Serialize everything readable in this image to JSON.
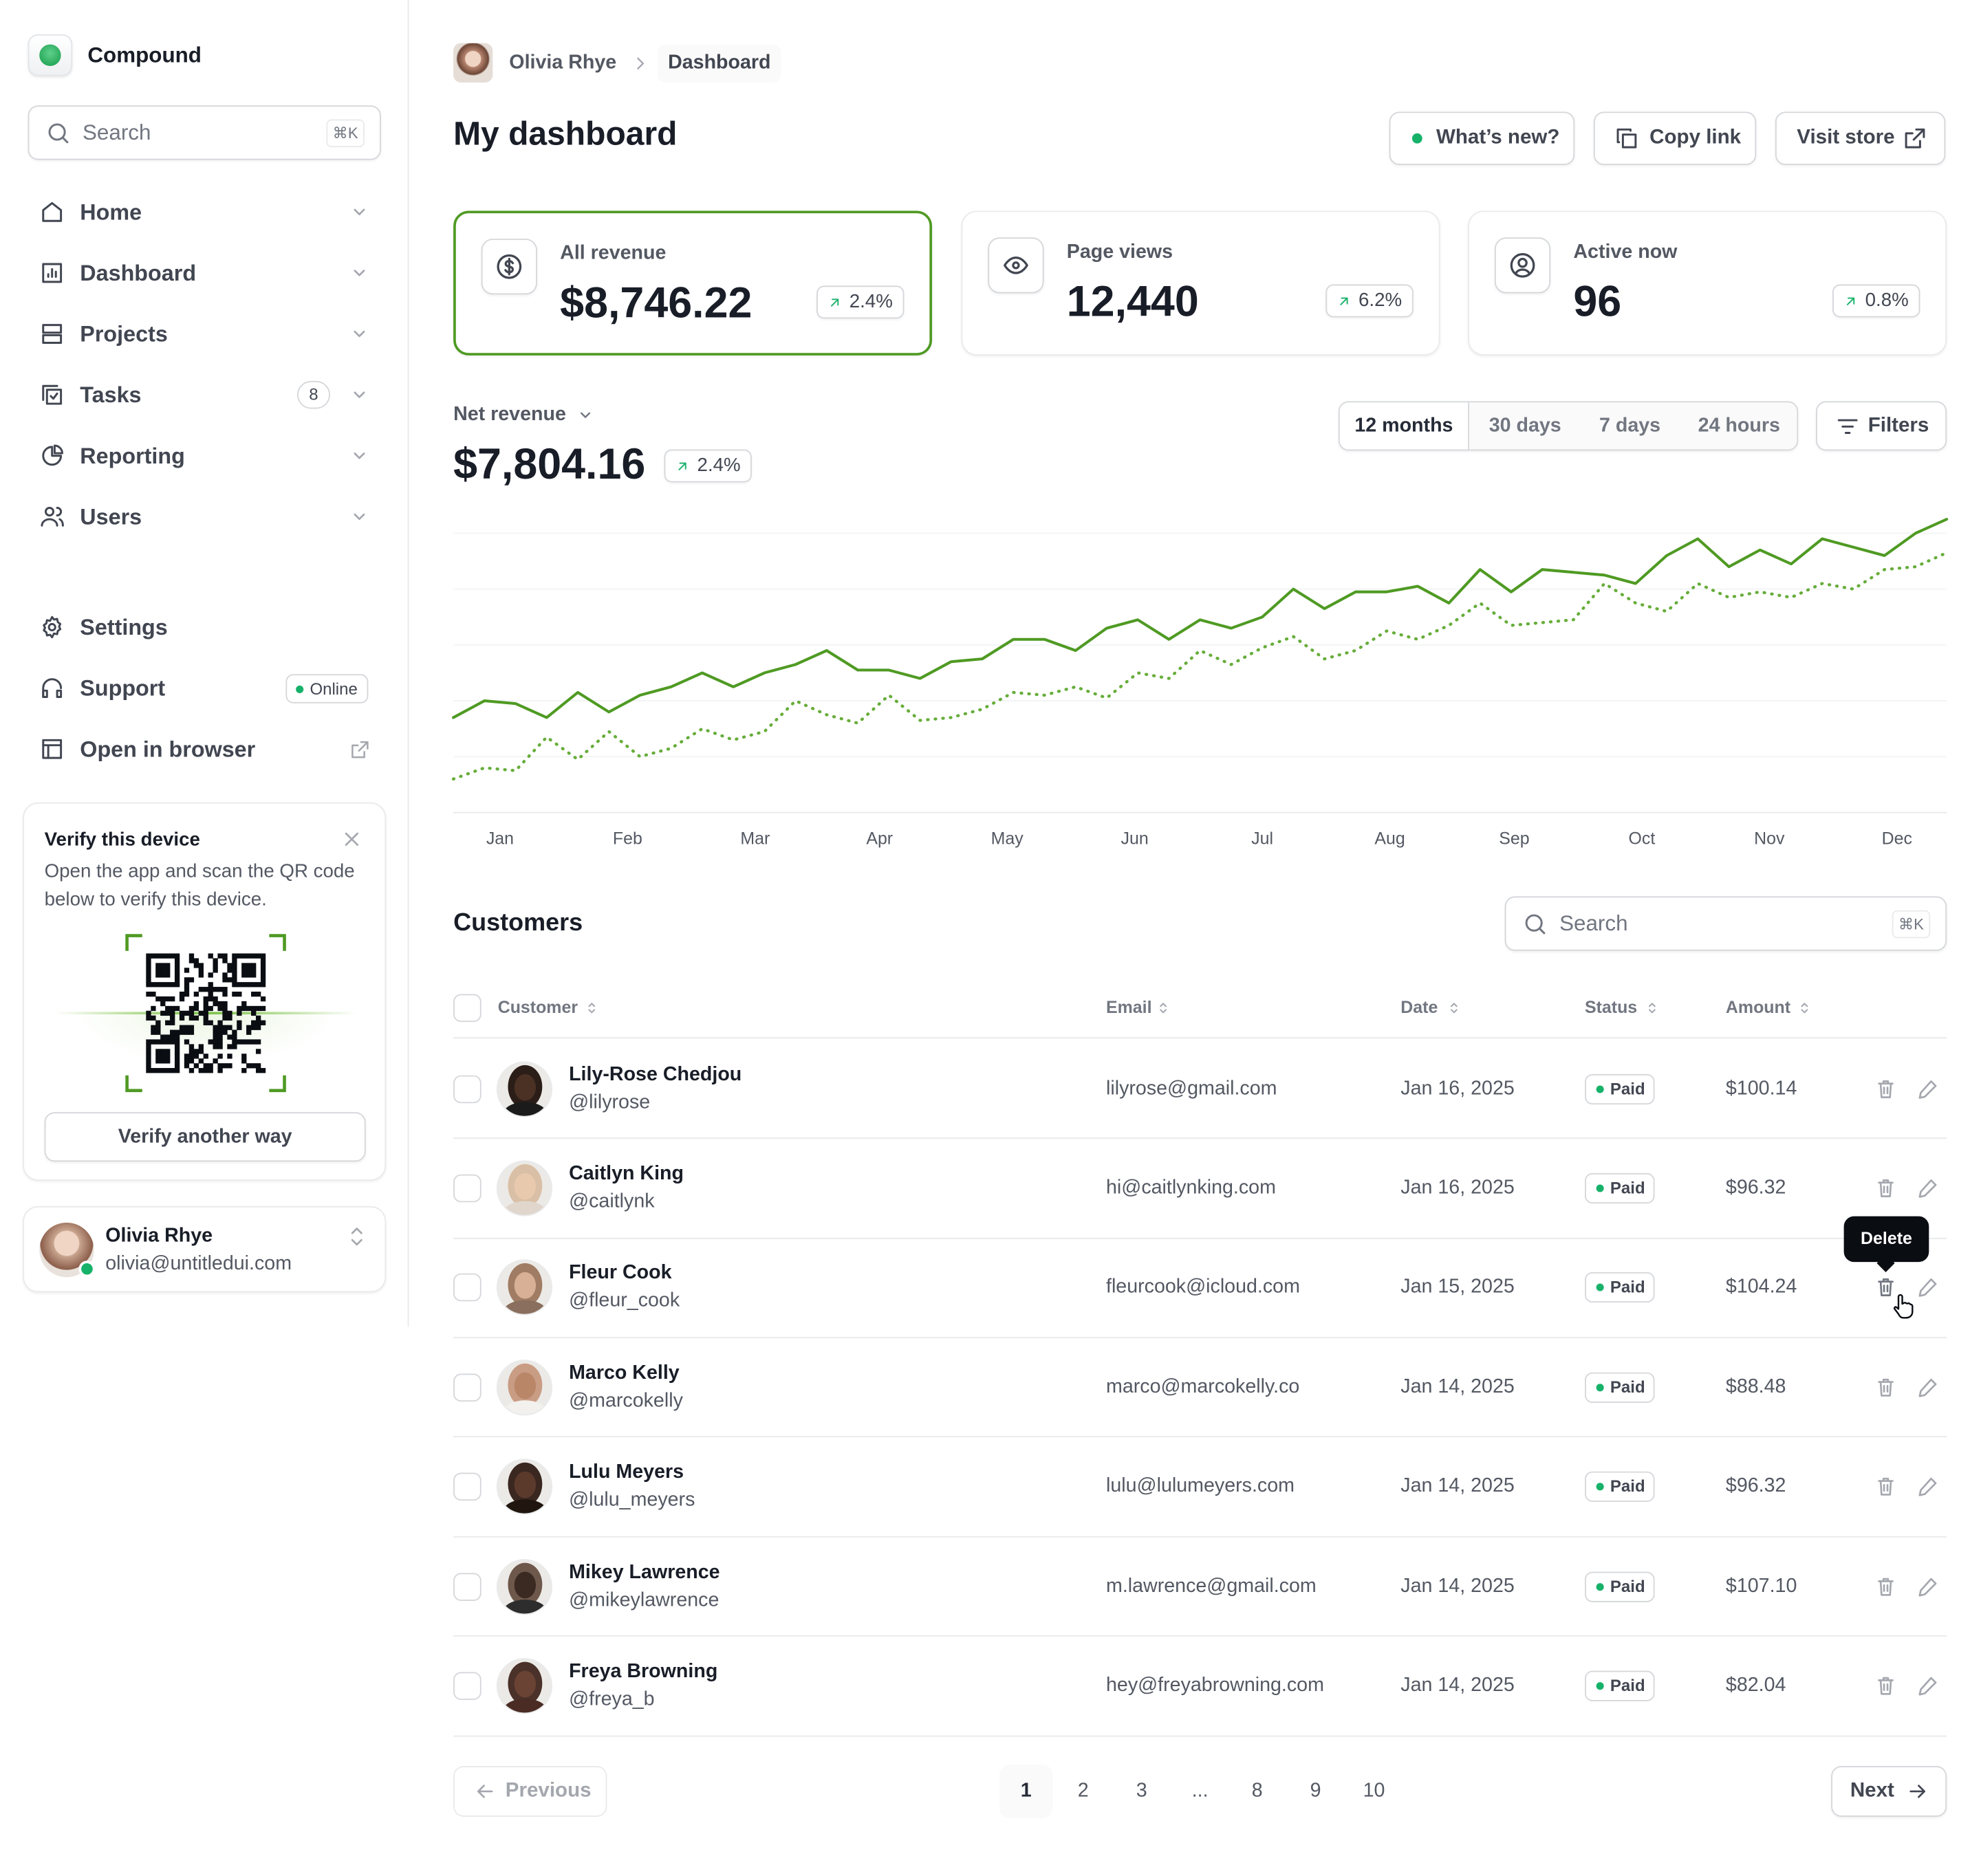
{
  "sidebar": {
    "brand": "Compound",
    "search": "Search",
    "shortcut": "⌘K",
    "nav": [
      {
        "label": "Home"
      },
      {
        "label": "Dashboard"
      },
      {
        "label": "Projects"
      },
      {
        "label": "Tasks",
        "badge": "8"
      },
      {
        "label": "Reporting"
      },
      {
        "label": "Users"
      }
    ],
    "footer_nav": [
      {
        "label": "Settings"
      },
      {
        "label": "Support",
        "badge": "Online"
      },
      {
        "label": "Open in browser"
      }
    ],
    "verify": {
      "title": "Verify this device",
      "text": "Open the app and scan the QR code below to verify this device.",
      "button": "Verify another way"
    },
    "user": {
      "name": "Olivia Rhye",
      "email": "olivia@untitledui.com"
    }
  },
  "header": {
    "breadcrumb": [
      "Olivia Rhye",
      "Dashboard"
    ],
    "title": "My dashboard",
    "buttons": [
      "What’s new?",
      "Copy link",
      "Visit store"
    ]
  },
  "stats": [
    {
      "label": "All revenue",
      "value": "$8,746.22",
      "change": "2.4%"
    },
    {
      "label": "Page views",
      "value": "12,440",
      "change": "6.2%"
    },
    {
      "label": "Active now",
      "value": "96",
      "change": "0.8%"
    }
  ],
  "chart_data": {
    "type": "line",
    "title": "Net revenue",
    "value": "$7,804.16",
    "change": "2.4%",
    "ranges": [
      "12 months",
      "30 days",
      "7 days",
      "24 hours"
    ],
    "filters": "Filters",
    "x": [
      0,
      1,
      2,
      3,
      4,
      5,
      6,
      7,
      8,
      9,
      10,
      11,
      12,
      13,
      14,
      15,
      16,
      17,
      18,
      19,
      20,
      21,
      22,
      23,
      24,
      25,
      26,
      27,
      28,
      29,
      30,
      31,
      32,
      33,
      34,
      35,
      36,
      37,
      38,
      39,
      40,
      41,
      42,
      43,
      44,
      45,
      46,
      47,
      48
    ],
    "xlim": [
      0,
      48
    ],
    "xticks": [
      {
        "value": 1.5,
        "label": "Jan"
      },
      {
        "value": 5.6,
        "label": "Feb"
      },
      {
        "value": 9.7,
        "label": "Mar"
      },
      {
        "value": 13.7,
        "label": "Apr"
      },
      {
        "value": 17.8,
        "label": "May"
      },
      {
        "value": 21.9,
        "label": "Jun"
      },
      {
        "value": 26,
        "label": "Jul"
      },
      {
        "value": 30.1,
        "label": "Aug"
      },
      {
        "value": 34.1,
        "label": "Sep"
      },
      {
        "value": 38.2,
        "label": "Oct"
      },
      {
        "value": 42.3,
        "label": "Nov"
      },
      {
        "value": 46.4,
        "label": "Dec"
      }
    ],
    "ylim": [
      0,
      100
    ],
    "yticks": [
      0,
      20,
      40,
      60,
      80,
      100
    ],
    "grid": true,
    "series": [
      {
        "color": "#4f9a23",
        "style": "solid",
        "values": [
          34,
          40,
          39,
          34,
          43,
          36,
          42,
          45,
          50,
          45,
          50,
          53,
          58,
          51,
          51,
          48,
          54,
          55,
          62,
          62,
          58,
          66,
          69,
          62,
          69,
          66,
          70,
          80,
          73,
          79,
          79,
          81,
          75,
          87,
          79,
          87,
          86,
          85,
          82,
          92,
          98,
          88,
          94,
          89,
          98,
          95,
          92,
          100,
          105
        ]
      },
      {
        "color": "#66ad3a",
        "style": "dotted",
        "values": [
          12,
          16,
          15,
          27,
          19,
          29,
          20,
          23,
          30,
          26,
          29,
          40,
          35,
          32,
          42,
          33,
          34,
          37,
          43,
          42,
          45,
          41,
          50,
          48,
          58,
          53,
          59,
          63,
          55,
          58,
          65,
          62,
          67,
          75,
          67,
          68,
          69,
          82,
          75,
          72,
          82,
          77,
          79,
          77,
          82,
          80,
          87,
          88,
          93
        ]
      }
    ]
  },
  "customers": {
    "title": "Customers",
    "search": "Search",
    "shortcut": "⌘K",
    "columns": [
      "Customer",
      "Email",
      "Date",
      "Status",
      "Amount"
    ],
    "tooltip": "Delete",
    "rows": [
      {
        "name": "Lily-Rose Chedjou",
        "handle": "@lilyrose",
        "email": "lilyrose@gmail.com",
        "date": "Jan 16, 2025",
        "status": "Paid",
        "amount": "$100.14"
      },
      {
        "name": "Caitlyn King",
        "handle": "@caitlynk",
        "email": "hi@caitlynking.com",
        "date": "Jan 16, 2025",
        "status": "Paid",
        "amount": "$96.32"
      },
      {
        "name": "Fleur Cook",
        "handle": "@fleur_cook",
        "email": "fleurcook@icloud.com",
        "date": "Jan 15, 2025",
        "status": "Paid",
        "amount": "$104.24"
      },
      {
        "name": "Marco Kelly",
        "handle": "@marcokelly",
        "email": "marco@marcokelly.co",
        "date": "Jan 14, 2025",
        "status": "Paid",
        "amount": "$88.48"
      },
      {
        "name": "Lulu Meyers",
        "handle": "@lulu_meyers",
        "email": "lulu@lulumeyers.com",
        "date": "Jan 14, 2025",
        "status": "Paid",
        "amount": "$96.32"
      },
      {
        "name": "Mikey Lawrence",
        "handle": "@mikeylawrence",
        "email": "m.lawrence@gmail.com",
        "date": "Jan 14, 2025",
        "status": "Paid",
        "amount": "$107.10"
      },
      {
        "name": "Freya Browning",
        "handle": "@freya_b",
        "email": "hey@freyabrowning.com",
        "date": "Jan 14, 2025",
        "status": "Paid",
        "amount": "$82.04"
      }
    ]
  },
  "pagination": {
    "previous": "Previous",
    "pages": [
      "1",
      "2",
      "3",
      "...",
      "8",
      "9",
      "10"
    ],
    "next": "Next"
  }
}
